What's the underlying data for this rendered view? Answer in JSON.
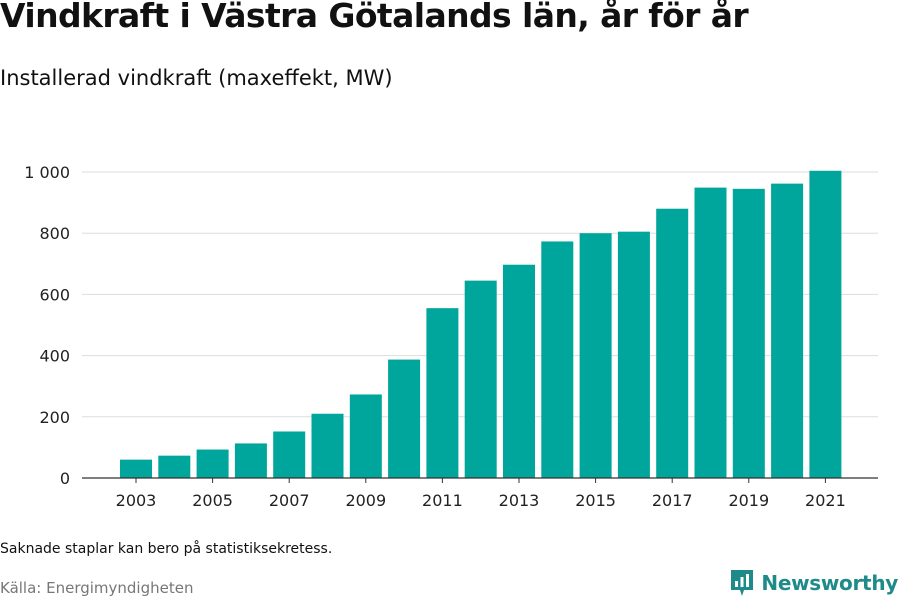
{
  "title": "Vindkraft i Västra Götalands län, år för år",
  "subtitle": "Installerad vindkraft (maxeffekt, MW)",
  "note": "Saknade staplar kan bero på statistiksekretess.",
  "source": "Källa: Energimyndigheten",
  "brand": "Newsworthy",
  "colors": {
    "bar": "#00a59b",
    "grid": "#dddddd",
    "axis": "#333333",
    "brand": "#1f8a8a"
  },
  "chart_data": {
    "type": "bar",
    "categories": [
      "2003",
      "2004",
      "2005",
      "2006",
      "2007",
      "2008",
      "2009",
      "2010",
      "2011",
      "2012",
      "2013",
      "2014",
      "2015",
      "2016",
      "2017",
      "2018",
      "2019",
      "2020",
      "2021"
    ],
    "values": [
      60,
      73,
      93,
      113,
      152,
      210,
      273,
      387,
      555,
      645,
      697,
      773,
      800,
      805,
      880,
      949,
      945,
      962,
      1004
    ],
    "x_tick_labels": [
      "2003",
      "2005",
      "2007",
      "2009",
      "2011",
      "2013",
      "2015",
      "2017",
      "2019",
      "2021"
    ],
    "y_tick_labels": [
      "0",
      "200",
      "400",
      "600",
      "800",
      "1 000"
    ],
    "y_ticks": [
      0,
      200,
      400,
      600,
      800,
      1000
    ],
    "ylim": [
      0,
      1000
    ],
    "grid": true,
    "xlabel": "",
    "ylabel": ""
  }
}
